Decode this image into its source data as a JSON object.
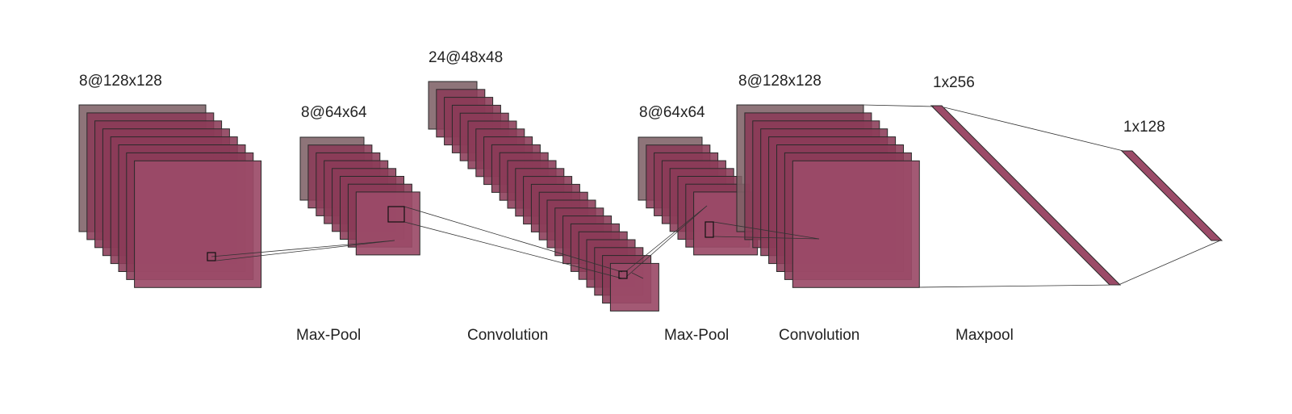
{
  "colors": {
    "back": "#7e6166",
    "mid": "#8b3b58",
    "front": "#9b4b68",
    "stroke": "#2a2a2a",
    "text": "#222222"
  },
  "layers": [
    {
      "dims": "8@128x128",
      "count": 8
    },
    {
      "dims": "8@64x64",
      "count": 8
    },
    {
      "dims": "24@48x48",
      "count": 24
    },
    {
      "dims": "8@64x64",
      "count": 8
    },
    {
      "dims": "8@128x128",
      "count": 8
    },
    {
      "dims": "1x256"
    },
    {
      "dims": "1x128"
    }
  ],
  "operations": [
    "Max-Pool",
    "Convolution",
    "Max-Pool",
    "Convolution",
    "Maxpool"
  ]
}
